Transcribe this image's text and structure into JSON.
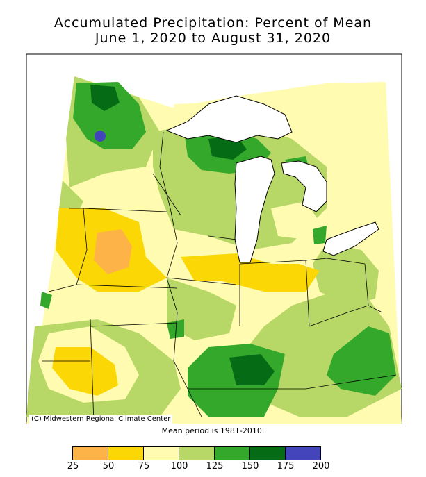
{
  "title": {
    "line1": "Accumulated Precipitation: Percent of Mean",
    "line2": "June 1, 2020 to August 31, 2020"
  },
  "credit": "(C) Midwestern Regional Climate Center",
  "period_note": "Mean period is 1981-2010.",
  "legend": {
    "ticks": [
      "25",
      "50",
      "75",
      "100",
      "125",
      "150",
      "175",
      "200"
    ],
    "bins": [
      {
        "range": [
          25,
          50
        ],
        "color": "#fdb347"
      },
      {
        "range": [
          50,
          75
        ],
        "color": "#fbd705"
      },
      {
        "range": [
          75,
          100
        ],
        "color": "#fffbb0"
      },
      {
        "range": [
          100,
          125
        ],
        "color": "#b7d867"
      },
      {
        "range": [
          125,
          150
        ],
        "color": "#34a82b"
      },
      {
        "range": [
          150,
          175
        ],
        "color": "#056b14"
      },
      {
        "range": [
          175,
          200
        ],
        "color": "#4444bb"
      }
    ]
  },
  "colors": {
    "lake": "#ffffff",
    "boundary": "#000000"
  }
}
